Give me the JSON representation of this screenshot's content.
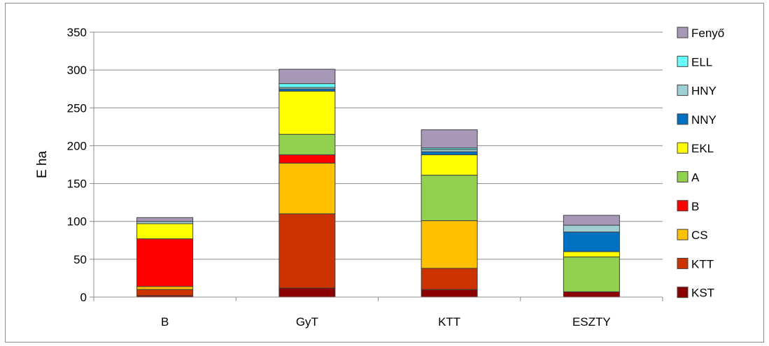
{
  "chart_data": {
    "type": "bar",
    "stacked": true,
    "categories": [
      "B",
      "GyT",
      "KTT",
      "ESZTY"
    ],
    "ylabel": "E ha",
    "xlabel": "",
    "ylim": [
      0,
      350
    ],
    "yticks": [
      0,
      50,
      100,
      150,
      200,
      250,
      300,
      350
    ],
    "grid": true,
    "legend_position": "right",
    "series": [
      {
        "name": "KST",
        "color": "#8b0000",
        "values": [
          2,
          12,
          10,
          7
        ]
      },
      {
        "name": "KTT",
        "color": "#cc3300",
        "values": [
          8,
          98,
          28,
          0
        ]
      },
      {
        "name": "CS",
        "color": "#ffc000",
        "values": [
          4,
          67,
          63,
          0
        ]
      },
      {
        "name": "B",
        "color": "#ff0000",
        "values": [
          63,
          11,
          0,
          0
        ]
      },
      {
        "name": "A",
        "color": "#92d050",
        "values": [
          0,
          27,
          60,
          46
        ]
      },
      {
        "name": "EKL",
        "color": "#ffff00",
        "values": [
          20,
          57,
          27,
          7
        ]
      },
      {
        "name": "NNY",
        "color": "#0070c0",
        "values": [
          0,
          3,
          4,
          26
        ]
      },
      {
        "name": "HNY",
        "color": "#9fcfd4",
        "values": [
          3,
          2,
          3,
          9
        ]
      },
      {
        "name": "ELL",
        "color": "#66ffff",
        "values": [
          0,
          5,
          2,
          0
        ]
      },
      {
        "name": "Fenyő",
        "color": "#a898b8",
        "values": [
          5,
          19,
          24,
          13
        ]
      }
    ]
  }
}
